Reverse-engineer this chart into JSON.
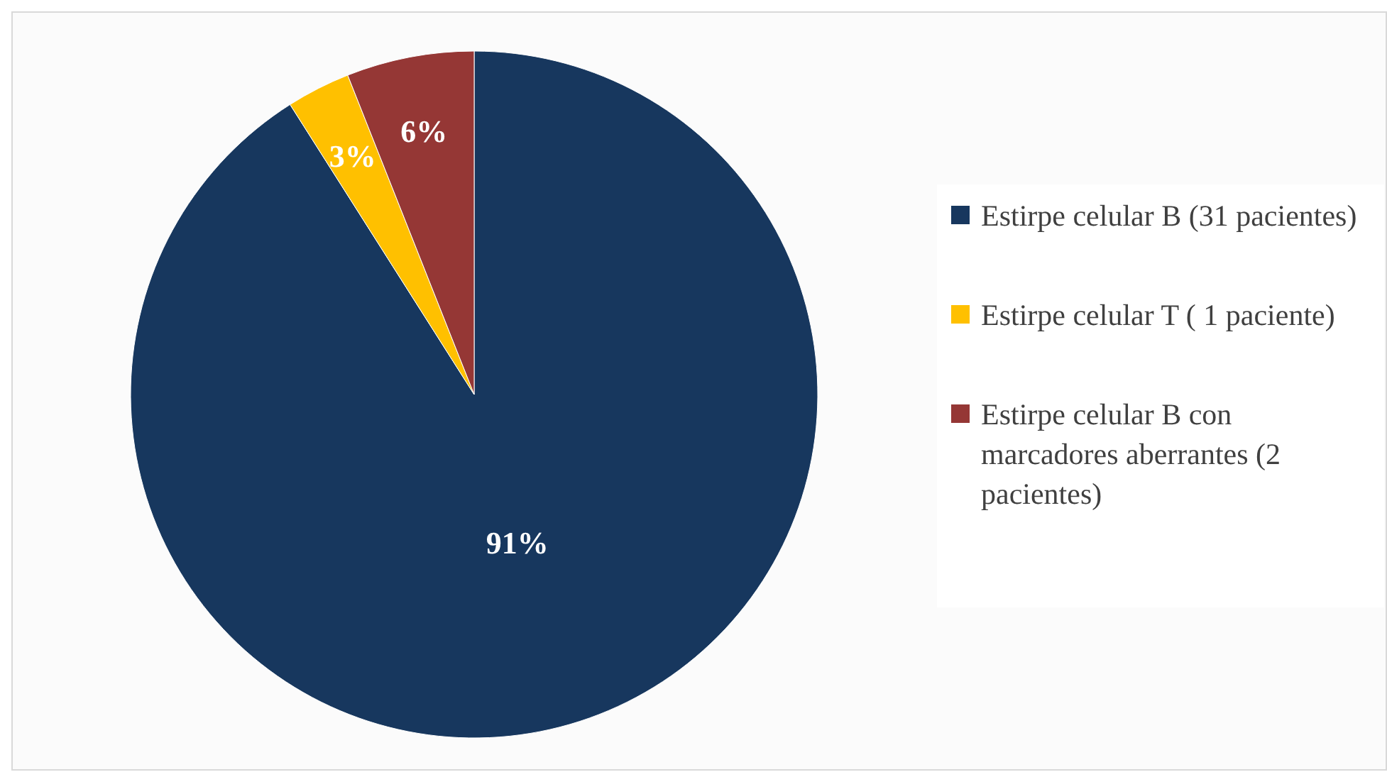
{
  "chart_data": {
    "type": "pie",
    "categories": [
      "Estirpe celular B (31 pacientes)",
      "Estirpe celular T ( 1 paciente)",
      "Estirpe celular B con marcadores aberrantes (2 pacientes)"
    ],
    "values": [
      91,
      3,
      6
    ],
    "colors": [
      "#17375e",
      "#ffc000",
      "#953735"
    ],
    "value_labels": [
      "91%",
      "3%",
      "6%"
    ],
    "legend": "right"
  }
}
